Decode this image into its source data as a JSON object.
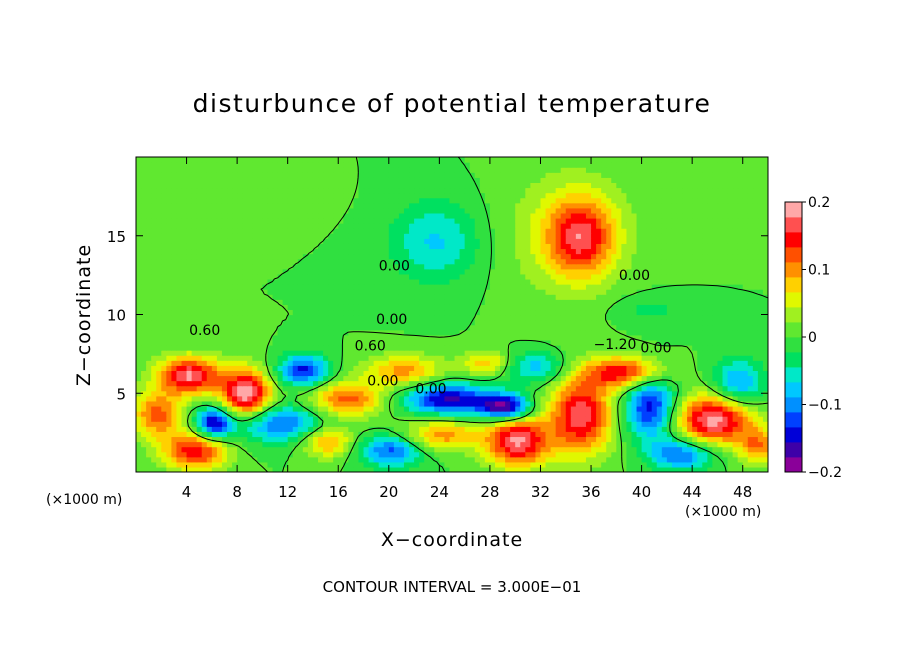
{
  "chart_data": {
    "type": "heatmap",
    "title": "disturbunce of potential temperature",
    "xlabel": "X−coordinate",
    "ylabel": "Z−coordinate",
    "x_unit_left": "(×1000 m)",
    "x_unit_right": "(×1000 m)",
    "xlim": [
      0,
      50
    ],
    "ylim": [
      0,
      20
    ],
    "xticks": [
      4,
      8,
      12,
      16,
      20,
      24,
      28,
      32,
      36,
      40,
      44,
      48
    ],
    "yticks": [
      5,
      10,
      15
    ],
    "colorbar": {
      "range": [
        -0.2,
        0.2
      ],
      "ticks": [
        0.2,
        0.1,
        0,
        -0.1,
        -0.2
      ],
      "tick_labels": [
        "0.2",
        "0.1",
        "0",
        "−0.1",
        "−0.2"
      ],
      "colors": [
        "#8a0099",
        "#3d00a8",
        "#0000d8",
        "#0040ff",
        "#0090ff",
        "#00c8ff",
        "#00e8c8",
        "#00e060",
        "#30e040",
        "#60e830",
        "#a0f020",
        "#e0f800",
        "#ffd000",
        "#ff9000",
        "#ff5000",
        "#ff0000",
        "#ff5050",
        "#ffa8a8"
      ]
    },
    "contour_labels": [
      {
        "text": "0.00",
        "x": 19.2,
        "z": 12.8
      },
      {
        "text": "0.00",
        "x": 19.0,
        "z": 9.4
      },
      {
        "text": "0.00",
        "x": 38.2,
        "z": 12.2
      },
      {
        "text": "0.60",
        "x": 4.2,
        "z": 8.7
      },
      {
        "text": "0.60",
        "x": 17.3,
        "z": 7.7
      },
      {
        "text": "−1.20",
        "x": 36.2,
        "z": 7.8
      },
      {
        "text": "0.00",
        "x": 39.9,
        "z": 7.6
      },
      {
        "text": "0.00",
        "x": 18.3,
        "z": 5.5
      },
      {
        "text": "0.00",
        "x": 22.1,
        "z": 5.0
      }
    ],
    "anomalies": [
      {
        "x": 23.5,
        "z": 14.5,
        "rx": 3.5,
        "rz": 2.6,
        "v": -0.07
      },
      {
        "x": 35.0,
        "z": 14.8,
        "rx": 2.6,
        "rz": 2.4,
        "v": 0.13
      },
      {
        "x": 34.0,
        "z": 15.0,
        "rx": 5.0,
        "rz": 4.0,
        "v": 0.05
      },
      {
        "x": 40.5,
        "z": 10.2,
        "rx": 3.0,
        "rz": 1.0,
        "v": -0.03
      },
      {
        "x": 10.0,
        "z": 17.5,
        "rx": 4.0,
        "rz": 1.5,
        "v": 0.02
      },
      {
        "x": 4.0,
        "z": 6.0,
        "rx": 2.5,
        "rz": 1.2,
        "v": 0.18
      },
      {
        "x": 8.5,
        "z": 4.8,
        "rx": 2.0,
        "rz": 1.6,
        "v": 0.2
      },
      {
        "x": 1.5,
        "z": 3.5,
        "rx": 2.0,
        "rz": 1.5,
        "v": 0.12
      },
      {
        "x": 13.0,
        "z": 6.3,
        "rx": 2.0,
        "rz": 1.0,
        "v": -0.14
      },
      {
        "x": 16.5,
        "z": 4.5,
        "rx": 3.0,
        "rz": 1.1,
        "v": 0.12
      },
      {
        "x": 11.0,
        "z": 3.0,
        "rx": 3.5,
        "rz": 1.2,
        "v": -0.12
      },
      {
        "x": 15.0,
        "z": 1.8,
        "rx": 2.0,
        "rz": 1.0,
        "v": 0.1
      },
      {
        "x": 4.5,
        "z": 1.2,
        "rx": 2.5,
        "rz": 1.2,
        "v": 0.15
      },
      {
        "x": 21.0,
        "z": 6.3,
        "rx": 3.0,
        "rz": 1.0,
        "v": 0.1
      },
      {
        "x": 24.5,
        "z": 4.5,
        "rx": 3.5,
        "rz": 1.0,
        "v": -0.16
      },
      {
        "x": 29.0,
        "z": 4.0,
        "rx": 2.0,
        "rz": 0.8,
        "v": -0.18
      },
      {
        "x": 24.0,
        "z": 2.2,
        "rx": 3.0,
        "rz": 1.0,
        "v": 0.1
      },
      {
        "x": 20.0,
        "z": 1.2,
        "rx": 2.5,
        "rz": 1.0,
        "v": -0.12
      },
      {
        "x": 30.0,
        "z": 1.8,
        "rx": 2.5,
        "rz": 1.6,
        "v": 0.18
      },
      {
        "x": 35.0,
        "z": 3.5,
        "rx": 2.5,
        "rz": 2.5,
        "v": 0.17
      },
      {
        "x": 31.5,
        "z": 6.5,
        "rx": 2.5,
        "rz": 1.0,
        "v": -0.08
      },
      {
        "x": 38.5,
        "z": 6.2,
        "rx": 3.0,
        "rz": 1.0,
        "v": 0.15
      },
      {
        "x": 40.5,
        "z": 4.0,
        "rx": 2.0,
        "rz": 2.0,
        "v": -0.15
      },
      {
        "x": 45.5,
        "z": 3.2,
        "rx": 3.0,
        "rz": 1.6,
        "v": 0.19
      },
      {
        "x": 47.5,
        "z": 5.5,
        "rx": 2.0,
        "rz": 1.5,
        "v": -0.1
      },
      {
        "x": 43.0,
        "z": 1.0,
        "rx": 2.5,
        "rz": 1.0,
        "v": -0.12
      },
      {
        "x": 49.0,
        "z": 1.5,
        "rx": 1.5,
        "rz": 1.2,
        "v": 0.1
      },
      {
        "x": 27.5,
        "z": 6.8,
        "rx": 2.0,
        "rz": 0.8,
        "v": 0.08
      },
      {
        "x": 6.0,
        "z": 3.0,
        "rx": 1.5,
        "rz": 1.0,
        "v": -0.16
      }
    ]
  },
  "footer": {
    "contour_interval": "CONTOUR INTERVAL = 3.000E−01"
  }
}
